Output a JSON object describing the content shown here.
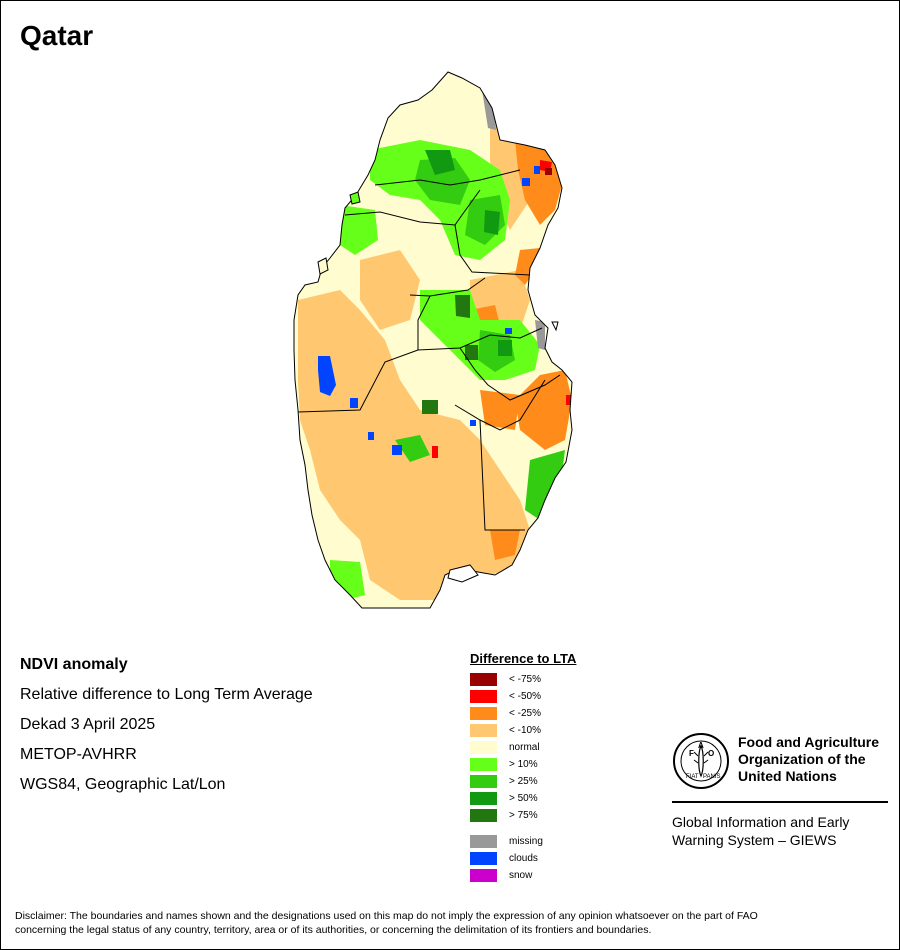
{
  "map": {
    "title": "Qatar"
  },
  "info": {
    "line1": "NDVI anomaly",
    "line2": "Relative difference to Long Term Average",
    "line3": "Dekad 3 April 2025",
    "line4": "METOP-AVHRR",
    "line5": "WGS84, Geographic Lat/Lon"
  },
  "legend": {
    "title": "Difference to LTA",
    "items": [
      {
        "label": "< -75%",
        "color": "#990000"
      },
      {
        "label": "< -50%",
        "color": "#ff0000"
      },
      {
        "label": "< -25%",
        "color": "#ff8c1a"
      },
      {
        "label": "< -10%",
        "color": "#ffc870"
      },
      {
        "label": "normal",
        "color": "#fffdd0"
      },
      {
        "label": "> 10%",
        "color": "#66ff1a"
      },
      {
        "label": "> 25%",
        "color": "#33cc11"
      },
      {
        "label": "> 50%",
        "color": "#119911"
      },
      {
        "label": "> 75%",
        "color": "#227711"
      },
      {
        "label": "missing",
        "color": "#999999"
      },
      {
        "label": "clouds",
        "color": "#0044ff"
      },
      {
        "label": "snow",
        "color": "#cc00cc"
      }
    ]
  },
  "organization": {
    "name_line1": "Food and Agriculture",
    "name_line2": "Organization of the",
    "name_line3": "United Nations",
    "logo_text": "FAO",
    "logo_motto": "FIAT PANIS",
    "program_line1": "Global Information and Early",
    "program_line2": "Warning System – GIEWS"
  },
  "disclaimer": {
    "line1": "Disclaimer: The boundaries and names shown and the designations used on this map do not imply the expression of any opinion whatsoever on the part of FAO",
    "line2": "concerning the legal status of any country, territory, area or of its authorities, or concerning the delimitation of its frontiers and boundaries."
  }
}
